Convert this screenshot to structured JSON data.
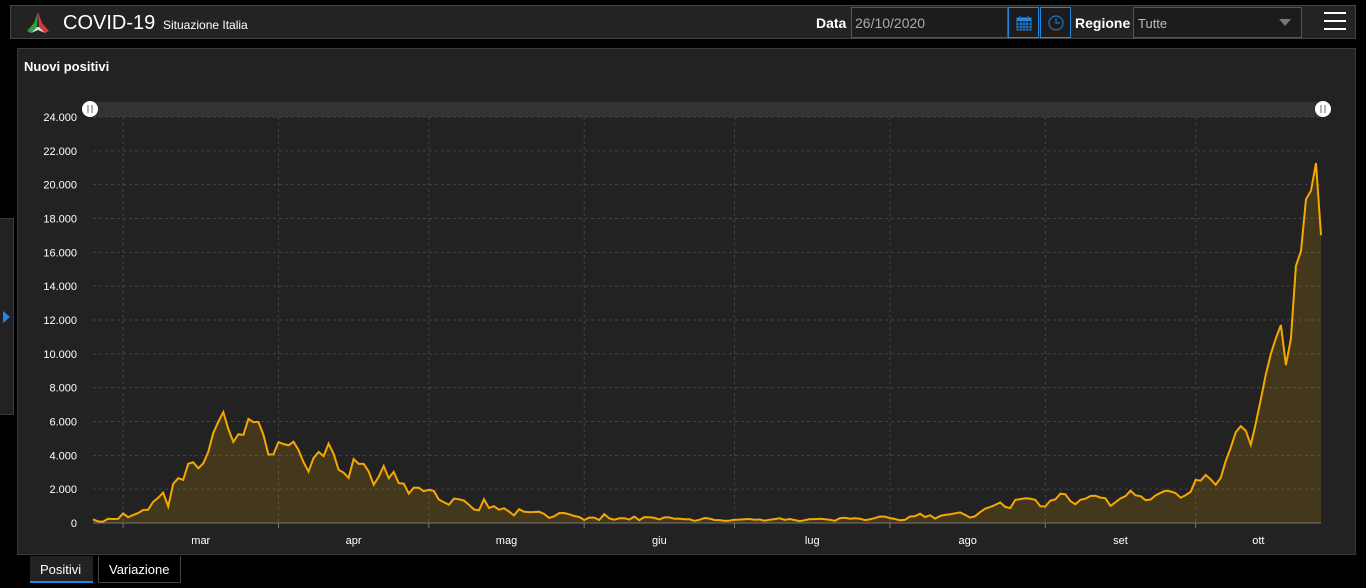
{
  "header": {
    "title": "COVID-19",
    "subtitle": "Situazione Italia",
    "date_label": "Data",
    "date_value": "26/10/2020",
    "region_label": "Regione",
    "region_value": "Tutte",
    "icons": {
      "calendar": "calendar-icon",
      "clock": "clock-icon",
      "menu": "hamburger-menu-icon",
      "logo": "italy-logo-icon"
    }
  },
  "panel": {
    "title": "Nuovi positivi"
  },
  "tabs": [
    {
      "label": "Positivi",
      "active": true
    },
    {
      "label": "Variazione",
      "active": false
    }
  ],
  "colors": {
    "line": "#f5a800",
    "accent": "#1e88e5"
  },
  "chart_data": {
    "type": "area",
    "title": "Nuovi positivi",
    "xlim": [
      "2020-02-24",
      "2020-10-26"
    ],
    "frequency": "daily",
    "ylim": [
      0,
      24000
    ],
    "yticks": [
      "0",
      "2.000",
      "4.000",
      "6.000",
      "8.000",
      "10.000",
      "12.000",
      "14.000",
      "16.000",
      "18.000",
      "20.000",
      "22.000",
      "24.000"
    ],
    "xticks": [
      "mar",
      "apr",
      "mag",
      "giu",
      "lug",
      "ago",
      "set",
      "ott"
    ],
    "grid": true,
    "range_slider": true,
    "values": [
      221,
      93,
      78,
      250,
      238,
      240,
      566,
      342,
      466,
      587,
      769,
      778,
      1247,
      1492,
      1797,
      977,
      2313,
      2651,
      2547,
      3497,
      3590,
      3233,
      3526,
      4207,
      5322,
      5986,
      6557,
      5560,
      4789,
      5249,
      5210,
      6153,
      5959,
      5974,
      5217,
      4050,
      4053,
      4782,
      4668,
      4585,
      4805,
      4316,
      3599,
      3039,
      3836,
      4204,
      3951,
      4694,
      4092,
      3153,
      2972,
      2667,
      3786,
      3493,
      3491,
      3047,
      2256,
      2729,
      3370,
      2646,
      3021,
      2357,
      2324,
      1739,
      2091,
      2086,
      1872,
      1965,
      1900,
      1389,
      1221,
      1075,
      1444,
      1401,
      1327,
      1083,
      802,
      744,
      1402,
      888,
      992,
      789,
      875,
      675,
      451,
      813,
      665,
      642,
      652,
      669,
      531,
      300,
      397,
      584,
      593,
      516,
      416,
      355,
      178,
      318,
      321,
      177,
      518,
      270,
      197,
      280,
      283,
      202,
      379,
      163,
      346,
      338,
      301,
      210,
      329,
      333,
      251,
      262,
      224,
      218,
      122,
      190,
      296,
      259,
      175,
      174,
      126,
      142,
      187,
      201,
      223,
      235,
      192,
      208,
      138,
      193,
      229,
      276,
      188,
      234,
      169,
      114,
      163,
      230,
      233,
      249,
      219,
      190,
      129,
      282,
      306,
      252,
      275,
      255,
      170,
      212,
      289,
      386,
      379,
      295,
      239,
      159,
      190,
      384,
      402,
      552,
      347,
      463,
      259,
      412,
      481,
      523,
      574,
      629,
      479,
      320,
      403,
      642,
      845,
      947,
      1071,
      1210,
      953,
      878,
      1367,
      1411,
      1462,
      1444,
      1365,
      996,
      978,
      1326,
      1397,
      1733,
      1695,
      1297,
      1108,
      1370,
      1434,
      1597,
      1616,
      1501,
      1458,
      1008,
      1229,
      1452,
      1585,
      1907,
      1638,
      1587,
      1350,
      1392,
      1640,
      1786,
      1912,
      1869,
      1766,
      1494,
      1648,
      1851,
      2548,
      2499,
      2844,
      2578,
      2257,
      2677,
      3678,
      4458,
      5372,
      5724,
      5456,
      4619,
      5901,
      7332,
      8804,
      10010,
      10925,
      11705,
      9338,
      10874,
      15199,
      16079,
      19143,
      19644,
      21273,
      17012
    ]
  }
}
